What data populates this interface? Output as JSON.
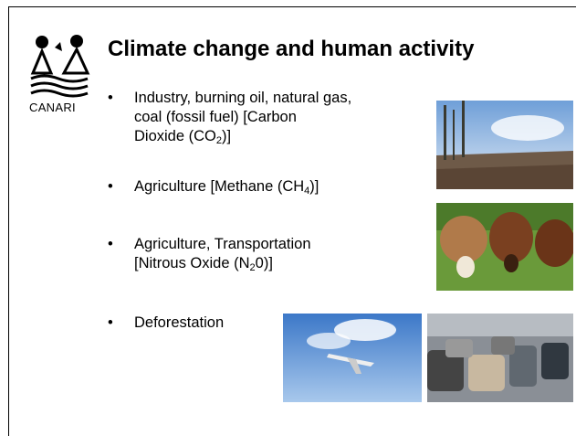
{
  "logo": {
    "text": "CANARI"
  },
  "title": "Climate change and human activity",
  "bullets": [
    {
      "lines": [
        {
          "text": "Industry, burning oil, natural gas,"
        },
        {
          "text": "coal  (fossil fuel) [Carbon"
        },
        {
          "text": "Dioxide (CO",
          "sub": "2",
          "after": ")]"
        }
      ]
    },
    {
      "lines": [
        {
          "text": "Agriculture [Methane (CH",
          "sub": "4",
          "after": ")]"
        }
      ]
    },
    {
      "lines": [
        {
          "text": "Agriculture, Transportation"
        },
        {
          "text": "[Nitrous Oxide (N",
          "sub": "2",
          "after": "0)]"
        }
      ]
    },
    {
      "lines": [
        {
          "text": "Deforestation"
        }
      ]
    }
  ]
}
